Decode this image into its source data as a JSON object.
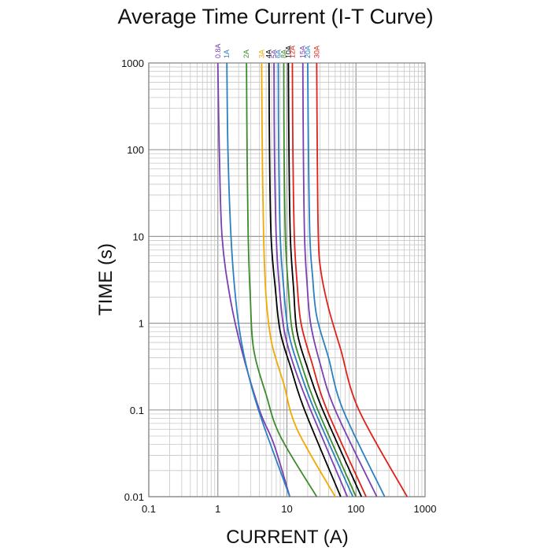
{
  "chart_data": {
    "type": "line",
    "title": "Average Time Current (I-T Curve)",
    "xlabel": "CURRENT (A)",
    "ylabel": "TIME (s)",
    "xscale": "log",
    "yscale": "log",
    "xlim": [
      0.1,
      1000
    ],
    "ylim": [
      0.01,
      1000
    ],
    "grid": true,
    "legend": "top, rotated labels above each curve",
    "x_ticks": [
      "0.1",
      "1",
      "10",
      "100",
      "1000"
    ],
    "y_ticks": [
      "0.01",
      "0.1",
      "1",
      "10",
      "100",
      "1000"
    ],
    "series": [
      {
        "name": "0.8A",
        "color": "#7a3fb0",
        "points": [
          [
            1.0,
            1000
          ],
          [
            1.05,
            100
          ],
          [
            1.15,
            10
          ],
          [
            1.5,
            2
          ],
          [
            2.2,
            0.5
          ],
          [
            4,
            0.1
          ],
          [
            6.5,
            0.04
          ],
          [
            11,
            0.01
          ]
        ]
      },
      {
        "name": "1A",
        "color": "#2a80c0",
        "points": [
          [
            1.35,
            1000
          ],
          [
            1.4,
            100
          ],
          [
            1.55,
            10
          ],
          [
            1.8,
            2
          ],
          [
            2.2,
            0.6
          ],
          [
            3,
            0.2
          ],
          [
            4.5,
            0.07
          ],
          [
            11,
            0.01
          ]
        ]
      },
      {
        "name": "2A",
        "color": "#3c8a2a",
        "points": [
          [
            2.6,
            1000
          ],
          [
            2.65,
            100
          ],
          [
            2.75,
            10
          ],
          [
            2.95,
            2
          ],
          [
            3.3,
            0.5
          ],
          [
            5,
            0.15
          ],
          [
            8,
            0.05
          ],
          [
            27,
            0.01
          ]
        ]
      },
      {
        "name": "3A",
        "color": "#f2a900",
        "points": [
          [
            4.3,
            1000
          ],
          [
            4.4,
            100
          ],
          [
            4.6,
            10
          ],
          [
            5,
            2
          ],
          [
            6,
            0.6
          ],
          [
            9,
            0.2
          ],
          [
            14,
            0.06
          ],
          [
            50,
            0.01
          ]
        ]
      },
      {
        "name": "4A",
        "color": "#000000",
        "points": [
          [
            5.5,
            1000
          ],
          [
            5.6,
            100
          ],
          [
            5.9,
            10
          ],
          [
            6.8,
            2.5
          ],
          [
            8,
            0.8
          ],
          [
            11.5,
            0.3
          ],
          [
            18,
            0.1
          ],
          [
            60,
            0.01
          ]
        ]
      },
      {
        "name": "5A",
        "color": "#7a3fb0",
        "points": [
          [
            6.5,
            1000
          ],
          [
            6.6,
            100
          ],
          [
            7,
            10
          ],
          [
            7.8,
            2.5
          ],
          [
            9.2,
            0.8
          ],
          [
            13,
            0.3
          ],
          [
            22,
            0.1
          ],
          [
            75,
            0.01
          ]
        ]
      },
      {
        "name": "6A",
        "color": "#2a80c0",
        "points": [
          [
            7.5,
            1000
          ],
          [
            7.6,
            100
          ],
          [
            8,
            10
          ],
          [
            9,
            2.5
          ],
          [
            10.5,
            0.8
          ],
          [
            15,
            0.3
          ],
          [
            25,
            0.1
          ],
          [
            90,
            0.01
          ]
        ]
      },
      {
        "name": "8A",
        "color": "#3c8a2a",
        "points": [
          [
            9,
            1000
          ],
          [
            9.1,
            100
          ],
          [
            9.5,
            10
          ],
          [
            10.5,
            2.5
          ],
          [
            12,
            0.8
          ],
          [
            17,
            0.3
          ],
          [
            28,
            0.1
          ],
          [
            100,
            0.01
          ]
        ]
      },
      {
        "name": "10A",
        "color": "#000000",
        "points": [
          [
            10.5,
            1000
          ],
          [
            10.7,
            100
          ],
          [
            11.2,
            10
          ],
          [
            12.5,
            2.5
          ],
          [
            14,
            0.8
          ],
          [
            20,
            0.3
          ],
          [
            33,
            0.1
          ],
          [
            120,
            0.01
          ]
        ]
      },
      {
        "name": "12A",
        "color": "#e0201a",
        "points": [
          [
            12,
            1000
          ],
          [
            12.2,
            100
          ],
          [
            12.8,
            10
          ],
          [
            14,
            3
          ],
          [
            16,
            1
          ],
          [
            23,
            0.35
          ],
          [
            38,
            0.1
          ],
          [
            140,
            0.01
          ]
        ]
      },
      {
        "name": "15A",
        "color": "#7a3fb0",
        "points": [
          [
            17,
            1000
          ],
          [
            17.3,
            100
          ],
          [
            18,
            10
          ],
          [
            19.5,
            3
          ],
          [
            22,
            1
          ],
          [
            30,
            0.35
          ],
          [
            50,
            0.1
          ],
          [
            200,
            0.01
          ]
        ]
      },
      {
        "name": "20A",
        "color": "#2a80c0",
        "points": [
          [
            20,
            1000
          ],
          [
            20.5,
            100
          ],
          [
            21.5,
            10
          ],
          [
            23.5,
            3.5
          ],
          [
            27,
            1.2
          ],
          [
            40,
            0.4
          ],
          [
            65,
            0.1
          ],
          [
            260,
            0.01
          ]
        ]
      },
      {
        "name": "30A",
        "color": "#e0201a",
        "points": [
          [
            27,
            1000
          ],
          [
            27.5,
            100
          ],
          [
            28.5,
            10
          ],
          [
            31,
            4
          ],
          [
            40,
            1.5
          ],
          [
            60,
            0.5
          ],
          [
            110,
            0.1
          ],
          [
            550,
            0.01
          ]
        ]
      }
    ]
  }
}
